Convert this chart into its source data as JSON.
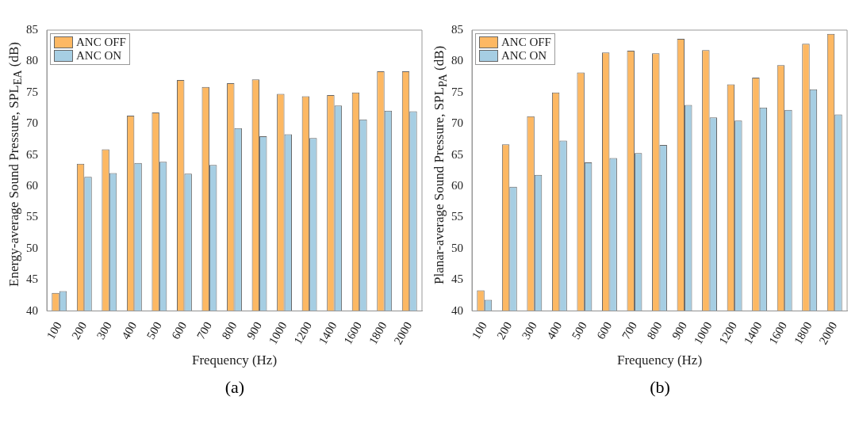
{
  "chart_data": [
    {
      "type": "bar",
      "xlabel": "Frequency (Hz)",
      "ylabel": "Energy-average Sound Pressure, SPL$_{EA}$ (dB)",
      "annotations": [
        "(a)"
      ],
      "categories": [
        "100",
        "200",
        "300",
        "400",
        "500",
        "600",
        "700",
        "800",
        "900",
        "1000",
        "1200",
        "1400",
        "1600",
        "1800",
        "2000"
      ],
      "ylim": [
        40,
        85
      ],
      "yticks": [
        40,
        45,
        50,
        55,
        60,
        65,
        70,
        75,
        80,
        85
      ],
      "grid": false,
      "legend": "top left",
      "series": [
        {
          "name": "ANC OFF",
          "color": "#fdb863",
          "values": [
            42.9,
            63.6,
            65.9,
            71.3,
            71.8,
            77.0,
            75.9,
            76.5,
            77.1,
            74.8,
            74.4,
            74.6,
            75.0,
            78.4,
            78.4
          ]
        },
        {
          "name": "ANC ON",
          "color": "#a6cee3",
          "values": [
            43.2,
            61.5,
            62.1,
            63.7,
            63.9,
            62.0,
            63.4,
            69.3,
            68.0,
            68.3,
            67.7,
            72.9,
            70.7,
            72.1,
            72.0
          ]
        }
      ]
    },
    {
      "type": "bar",
      "xlabel": "Frequency (Hz)",
      "ylabel": "Planar-average Sound Pressure, SPL$_{PA}$ (dB)",
      "annotations": [
        "(b)"
      ],
      "categories": [
        "100",
        "200",
        "300",
        "400",
        "500",
        "600",
        "700",
        "800",
        "900",
        "1000",
        "1200",
        "1400",
        "1600",
        "1800",
        "2000"
      ],
      "ylim": [
        40,
        85
      ],
      "yticks": [
        40,
        45,
        50,
        55,
        60,
        65,
        70,
        75,
        80,
        85
      ],
      "grid": false,
      "legend": "top left",
      "series": [
        {
          "name": "ANC OFF",
          "color": "#fdb863",
          "values": [
            43.3,
            66.7,
            71.2,
            75.0,
            78.2,
            81.4,
            81.7,
            81.3,
            83.6,
            81.8,
            76.3,
            77.4,
            79.4,
            82.8,
            84.4
          ]
        },
        {
          "name": "ANC ON",
          "color": "#a6cee3",
          "values": [
            41.8,
            59.9,
            61.8,
            67.3,
            63.8,
            64.5,
            65.3,
            66.6,
            73.0,
            71.0,
            70.5,
            72.6,
            72.2,
            75.5,
            71.5
          ]
        }
      ]
    }
  ]
}
